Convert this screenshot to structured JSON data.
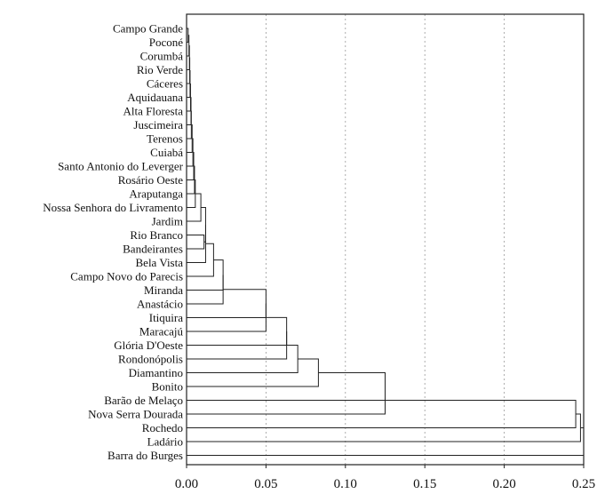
{
  "chart_data": {
    "type": "dendrogram",
    "orientation": "horizontal",
    "title": "",
    "xlabel": "",
    "ylabel": "",
    "xlim": [
      0,
      0.25
    ],
    "x_ticks": [
      "0.00",
      "0.05",
      "0.10",
      "0.15",
      "0.20",
      "0.25"
    ],
    "x_tick_values": [
      0,
      0.05,
      0.1,
      0.15,
      0.2,
      0.25
    ],
    "grid": "vertical-dashed",
    "leaves": [
      "Campo Grande",
      "Poconé",
      "Corumbá",
      "Rio Verde",
      "Cáceres",
      "Aquidauana",
      "Alta Floresta",
      "Juscimeira",
      "Terenos",
      "Cuiabá",
      "Santo Antonio do Leverger",
      "Rosário Oeste",
      "Araputanga",
      "Nossa Senhora do Livramento",
      "Jardim",
      "Rio Branco",
      "Bandeirantes",
      "Bela Vista",
      "Campo Novo do Parecis",
      "Miranda",
      "Anastácio",
      "Itiquira",
      "Maracajú",
      "Glória D'Oeste",
      "Rondonópolis",
      "Diamantino",
      "Bonito",
      "Barão de Melaço",
      "Nova Serra Dourada",
      "Rochedo",
      "Ladário",
      "Barra do Burges"
    ],
    "merges": [
      {
        "a": "L0",
        "b": "L1",
        "height": 0.001
      },
      {
        "a": "M0",
        "b": "L2",
        "height": 0.0015
      },
      {
        "a": "M1",
        "b": "L3",
        "height": 0.0018
      },
      {
        "a": "M2",
        "b": "L4",
        "height": 0.002
      },
      {
        "a": "M3",
        "b": "L5",
        "height": 0.0022
      },
      {
        "a": "M4",
        "b": "L6",
        "height": 0.0025
      },
      {
        "a": "M5",
        "b": "L7",
        "height": 0.0028
      },
      {
        "a": "M6",
        "b": "L8",
        "height": 0.003
      },
      {
        "a": "M7",
        "b": "L9",
        "height": 0.0035
      },
      {
        "a": "M8",
        "b": "L10",
        "height": 0.004
      },
      {
        "a": "M9",
        "b": "L11",
        "height": 0.0045
      },
      {
        "a": "M10",
        "b": "L12",
        "height": 0.005
      },
      {
        "a": "M11",
        "b": "L13",
        "height": 0.0055
      },
      {
        "a": "M12",
        "b": "L14",
        "height": 0.009
      },
      {
        "a": "L15",
        "b": "L16",
        "height": 0.011
      },
      {
        "a": "M13",
        "b": "M14",
        "height": 0.012
      },
      {
        "a": "M15",
        "b": "L17",
        "height": 0.012
      },
      {
        "a": "M16",
        "b": "L18",
        "height": 0.017
      },
      {
        "a": "M17",
        "b": "L19",
        "height": 0.023
      },
      {
        "a": "M18",
        "b": "L20",
        "height": 0.023
      },
      {
        "a": "M19",
        "b": "L21",
        "height": 0.05
      },
      {
        "a": "M20",
        "b": "L22",
        "height": 0.05
      },
      {
        "a": "M21",
        "b": "L23",
        "height": 0.063
      },
      {
        "a": "M22",
        "b": "L24",
        "height": 0.063
      },
      {
        "a": "M23",
        "b": "L25",
        "height": 0.07
      },
      {
        "a": "M24",
        "b": "L26",
        "height": 0.083
      },
      {
        "a": "M25",
        "b": "L27",
        "height": 0.125
      },
      {
        "a": "M26",
        "b": "L28",
        "height": 0.125
      },
      {
        "a": "M27",
        "b": "L29",
        "height": 0.245
      },
      {
        "a": "M28",
        "b": "L30",
        "height": 0.248
      },
      {
        "a": "M29",
        "b": "L31",
        "height": 0.25
      }
    ]
  }
}
